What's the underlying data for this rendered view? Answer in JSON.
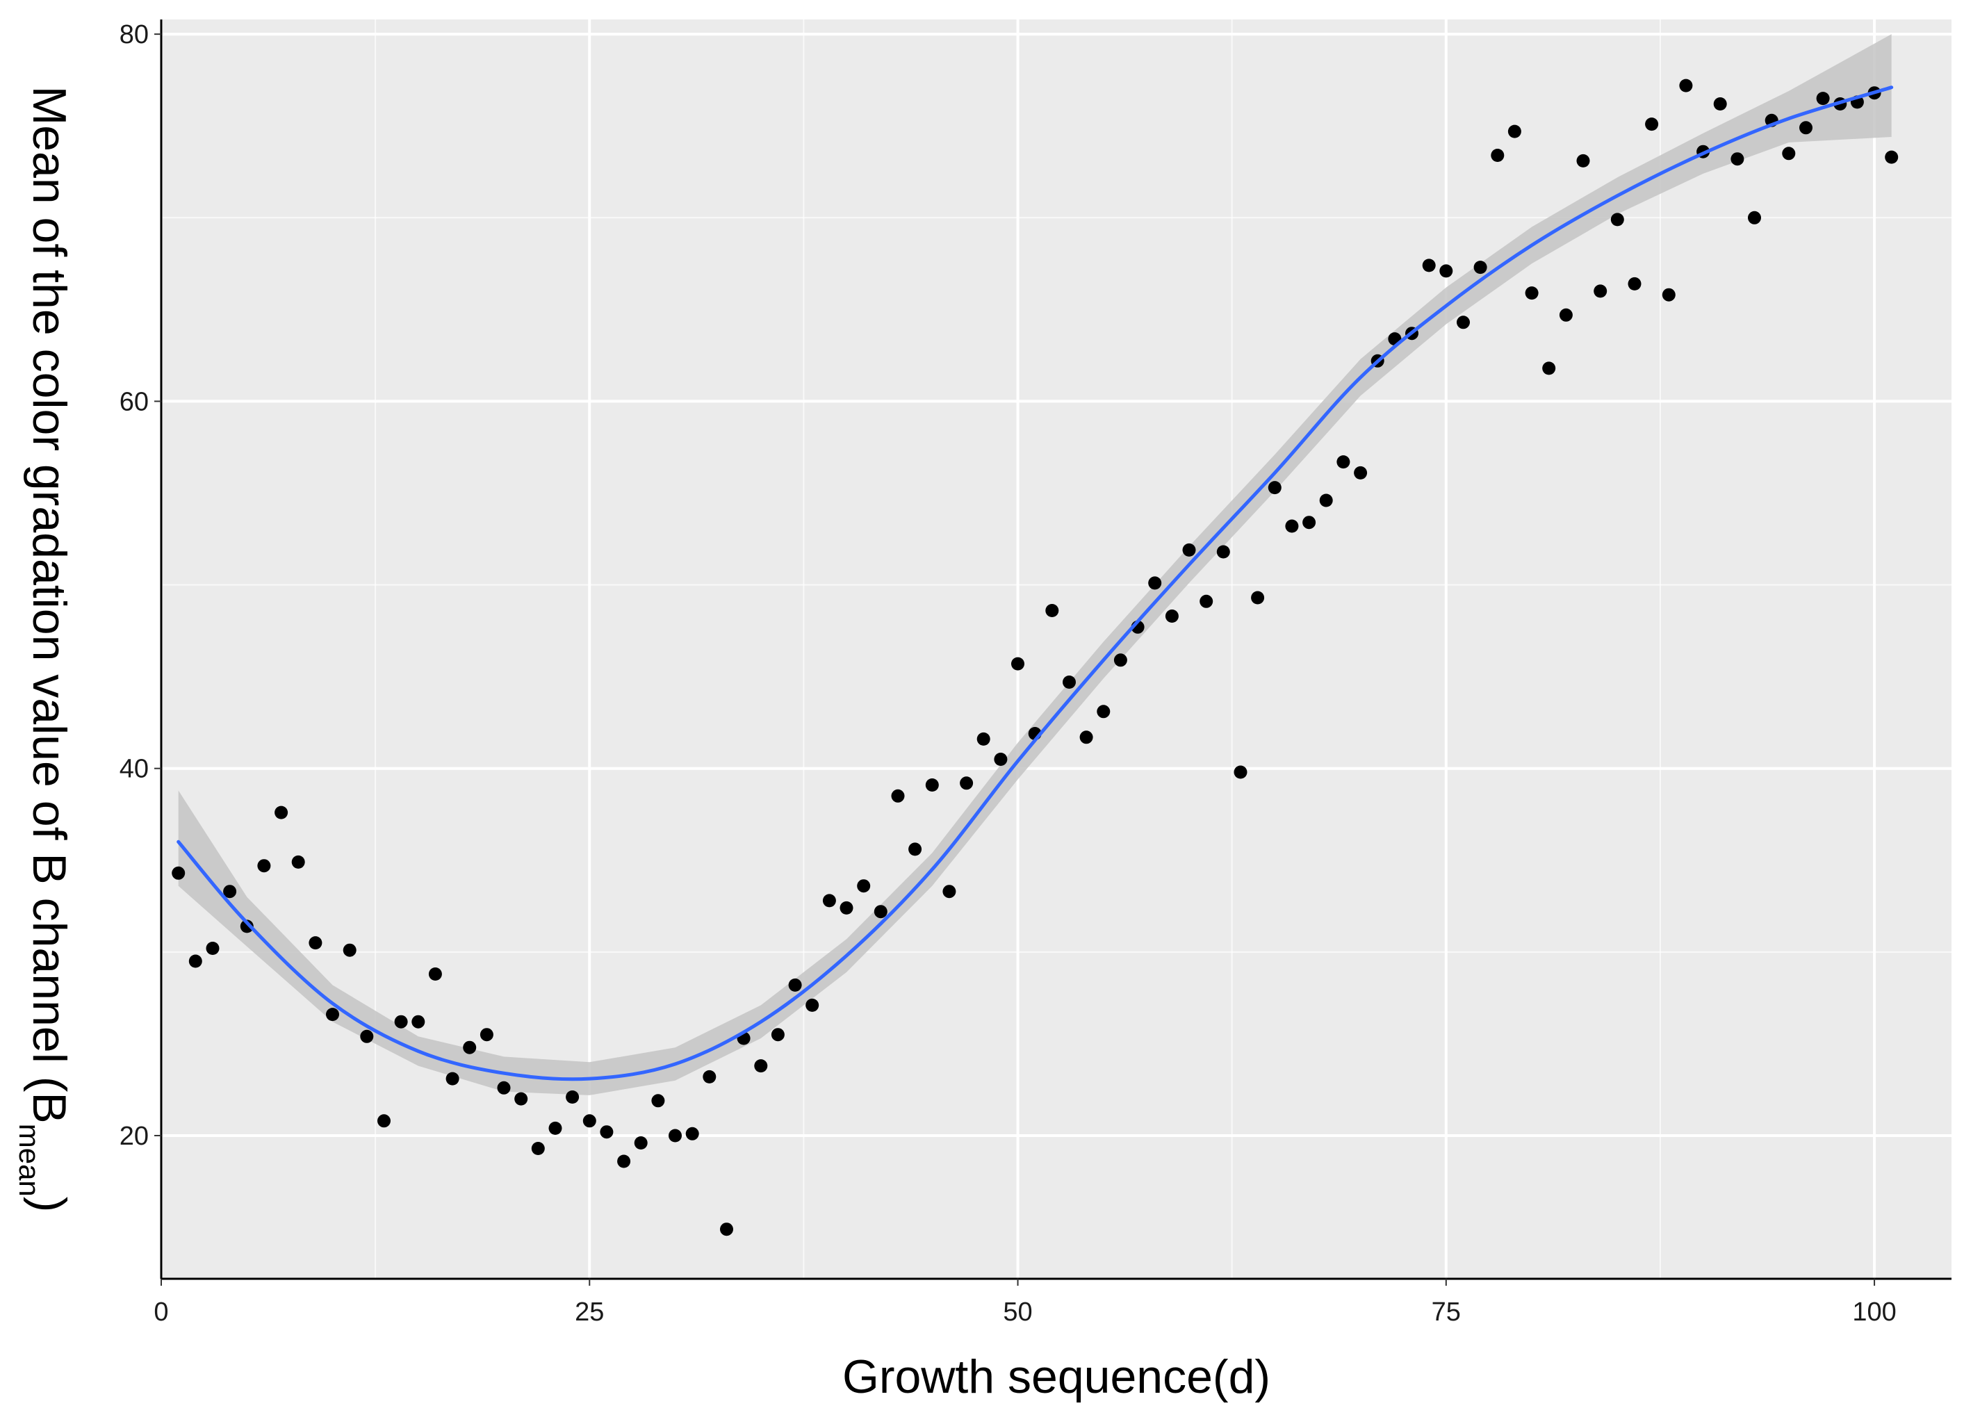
{
  "chart_data": {
    "type": "scatter",
    "xlabel": "Growth sequence(d)",
    "ylabel": "Mean of the color gradation value of B channel (B",
    "ylabel_subscript": "mean",
    "ylabel_suffix": ")",
    "xlim": [
      0,
      104.5
    ],
    "ylim": [
      12.2,
      80.8
    ],
    "x_ticks": [
      0,
      25,
      50,
      75,
      100
    ],
    "y_ticks": [
      20,
      40,
      60,
      80
    ],
    "x_tick_labels": [
      "0",
      "25",
      "50",
      "75",
      "100"
    ],
    "y_tick_labels": [
      "20",
      "40",
      "60",
      "80"
    ],
    "grid": true,
    "legend": "none",
    "colors": {
      "panel": "#ebebeb",
      "grid": "#ffffff",
      "points": "#000000",
      "fit_line": "#3366ff",
      "confidence_band": "#c4c4c4"
    },
    "points": {
      "x": [
        1,
        2,
        3,
        4,
        5,
        6,
        7,
        8,
        9,
        10,
        11,
        12,
        13,
        14,
        15,
        16,
        17,
        18,
        19,
        20,
        21,
        22,
        23,
        24,
        25,
        26,
        27,
        28,
        29,
        30,
        31,
        32,
        33,
        34,
        35,
        36,
        37,
        38,
        39,
        40,
        41,
        42,
        43,
        44,
        45,
        46,
        47,
        48,
        49,
        50,
        51,
        52,
        53,
        54,
        55,
        56,
        57,
        58,
        59,
        60,
        61,
        62,
        63,
        64,
        65,
        66,
        67,
        68,
        69,
        70,
        71,
        72,
        73,
        74,
        75,
        76,
        77,
        78,
        79,
        80,
        81,
        82,
        83,
        84,
        85,
        86,
        87,
        88,
        89,
        90,
        91,
        92,
        93,
        94,
        95,
        96,
        97,
        98,
        99,
        100,
        101
      ],
      "y": [
        34.3,
        29.5,
        30.2,
        33.3,
        31.4,
        34.7,
        37.6,
        34.9,
        30.5,
        26.6,
        30.1,
        25.4,
        20.8,
        26.2,
        26.2,
        28.8,
        23.1,
        24.8,
        25.5,
        22.6,
        22,
        19.3,
        20.4,
        22.1,
        20.8,
        20.2,
        18.6,
        19.6,
        21.9,
        20,
        20.1,
        23.2,
        14.9,
        25.3,
        23.8,
        25.5,
        28.2,
        27.1,
        32.8,
        32.4,
        33.6,
        32.2,
        38.5,
        35.6,
        39.1,
        33.3,
        39.2,
        41.6,
        40.5,
        45.7,
        41.9,
        48.6,
        44.7,
        41.7,
        43.1,
        45.9,
        47.7,
        50.1,
        48.3,
        51.9,
        49.1,
        51.8,
        39.8,
        49.3,
        55.3,
        53.2,
        53.4,
        54.6,
        56.7,
        56.1,
        62.2,
        63.4,
        63.7,
        67.4,
        67.1,
        64.3,
        67.3,
        73.4,
        74.7,
        65.9,
        61.8,
        64.7,
        73.1,
        66,
        69.9,
        66.4,
        75.1,
        65.8,
        77.2,
        73.6,
        76.2,
        73.2,
        70,
        75.3,
        73.5,
        74.9,
        76.5,
        76.2,
        76.3,
        76.8,
        73.3
      ]
    },
    "fit": {
      "x": [
        1,
        5,
        10,
        15,
        20,
        25,
        30,
        35,
        40,
        45,
        50,
        55,
        60,
        65,
        70,
        75,
        80,
        85,
        90,
        95,
        101
      ],
      "y": [
        36,
        31.6,
        27.2,
        24.6,
        23.4,
        23.1,
        23.9,
        26.2,
        29.8,
        34.5,
        40.4,
        45.9,
        51.1,
        56.1,
        61.3,
        65.2,
        68.5,
        71.2,
        73.5,
        75.4,
        77.1
      ],
      "lower": [
        33.6,
        30.3,
        26.2,
        23.8,
        22.4,
        22.2,
        23,
        25.3,
        28.9,
        33.6,
        39.4,
        44.9,
        50.1,
        55.1,
        60.3,
        64.2,
        67.5,
        70.2,
        72.4,
        74.1,
        74.4
      ],
      "upper": [
        38.8,
        33,
        28.2,
        25.4,
        24.3,
        24,
        24.8,
        27.1,
        30.7,
        35.4,
        41.4,
        46.9,
        52.1,
        57.1,
        62.3,
        66.2,
        69.5,
        72.2,
        74.6,
        76.9,
        80
      ]
    }
  }
}
